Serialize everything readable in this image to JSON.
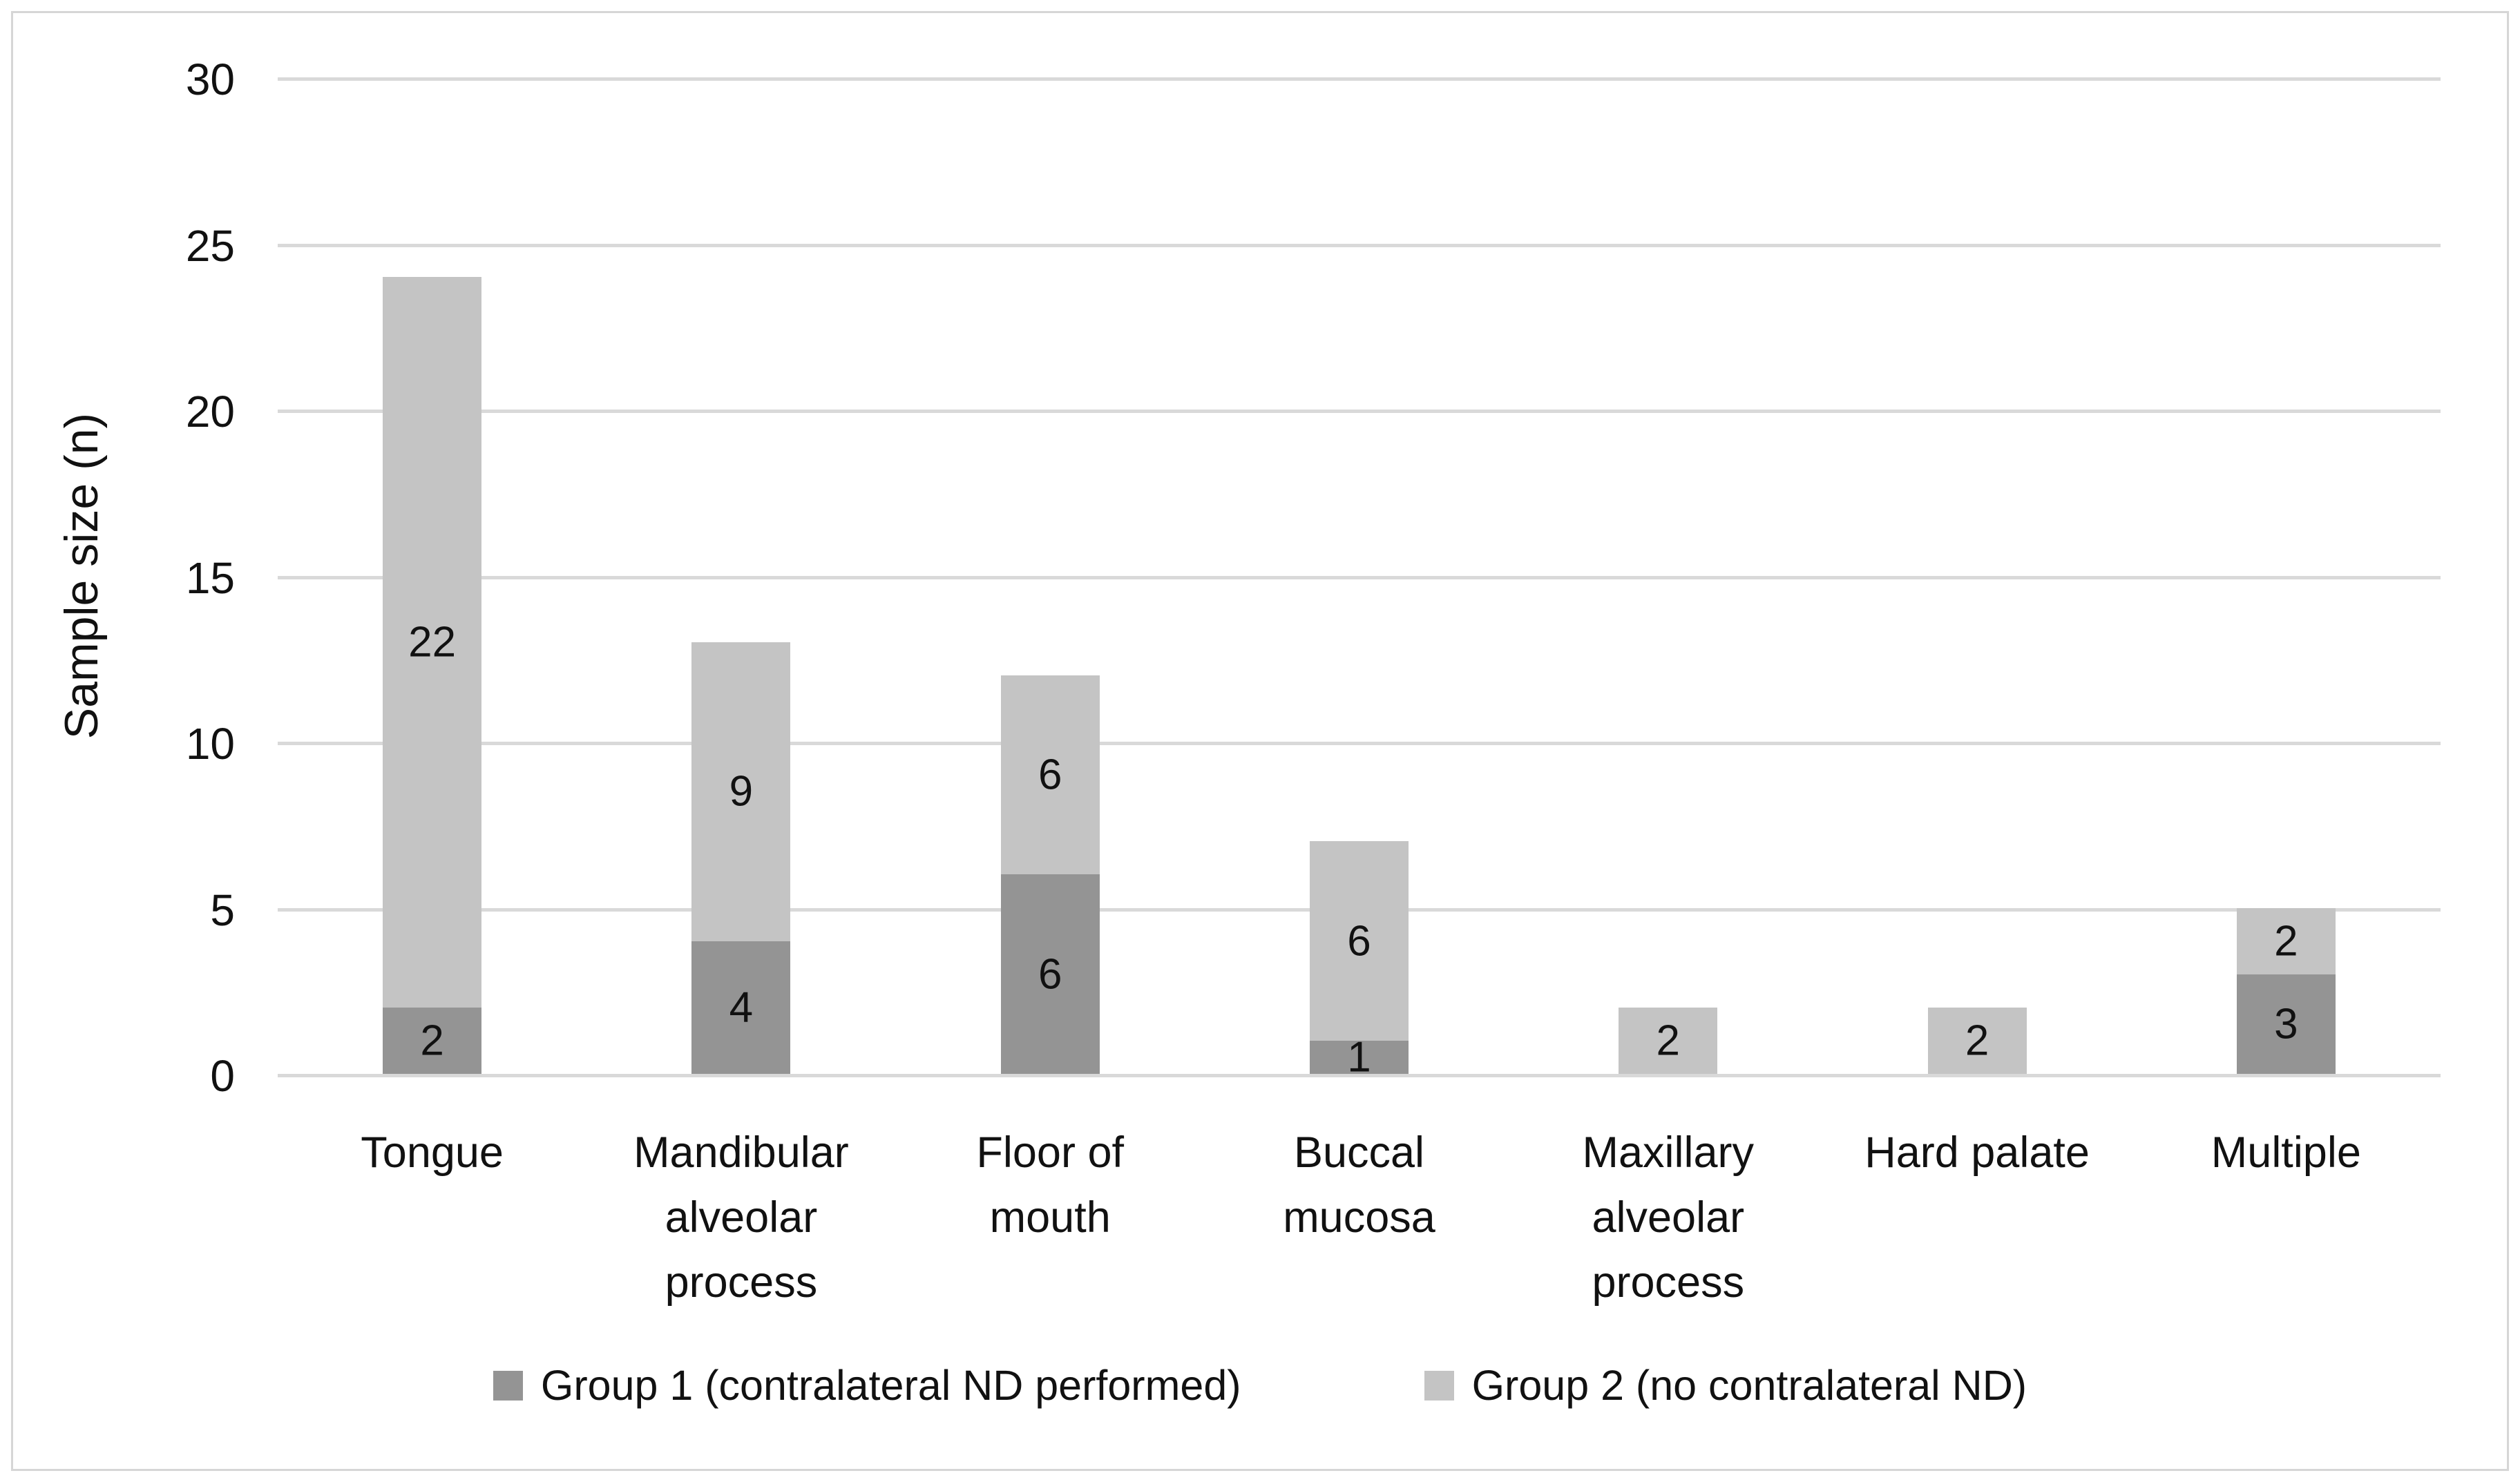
{
  "figure": {
    "background": "#ffffff",
    "border_color": "#d6d6d6"
  },
  "chart_data": {
    "type": "bar",
    "stacked": true,
    "title": "",
    "xlabel": "",
    "ylabel": "Sample size (n)",
    "ylim": [
      0,
      30
    ],
    "yticks": [
      0,
      5,
      10,
      15,
      20,
      25,
      30
    ],
    "grid": "horizontal",
    "gridline_color": "#d9d9d9",
    "axis_line_color": "#d9d9d9",
    "legend_position": "bottom",
    "data_labels": true,
    "categories": [
      "Tongue",
      "Mandibular\nalveolar\nprocess",
      "Floor of\nmouth",
      "Buccal\nmucosa",
      "Maxillary\nalveolar\nprocess",
      "Hard palate",
      "Multiple"
    ],
    "series": [
      {
        "name": "Group 1 (contralateral ND performed)",
        "color": "#949494",
        "values": [
          2,
          4,
          6,
          1,
          0,
          0,
          3
        ]
      },
      {
        "name": "Group 2 (no contralateral ND)",
        "color": "#c4c4c4",
        "values": [
          22,
          9,
          6,
          6,
          2,
          2,
          2
        ]
      }
    ],
    "totals": [
      24,
      13,
      12,
      7,
      2,
      2,
      5
    ]
  }
}
